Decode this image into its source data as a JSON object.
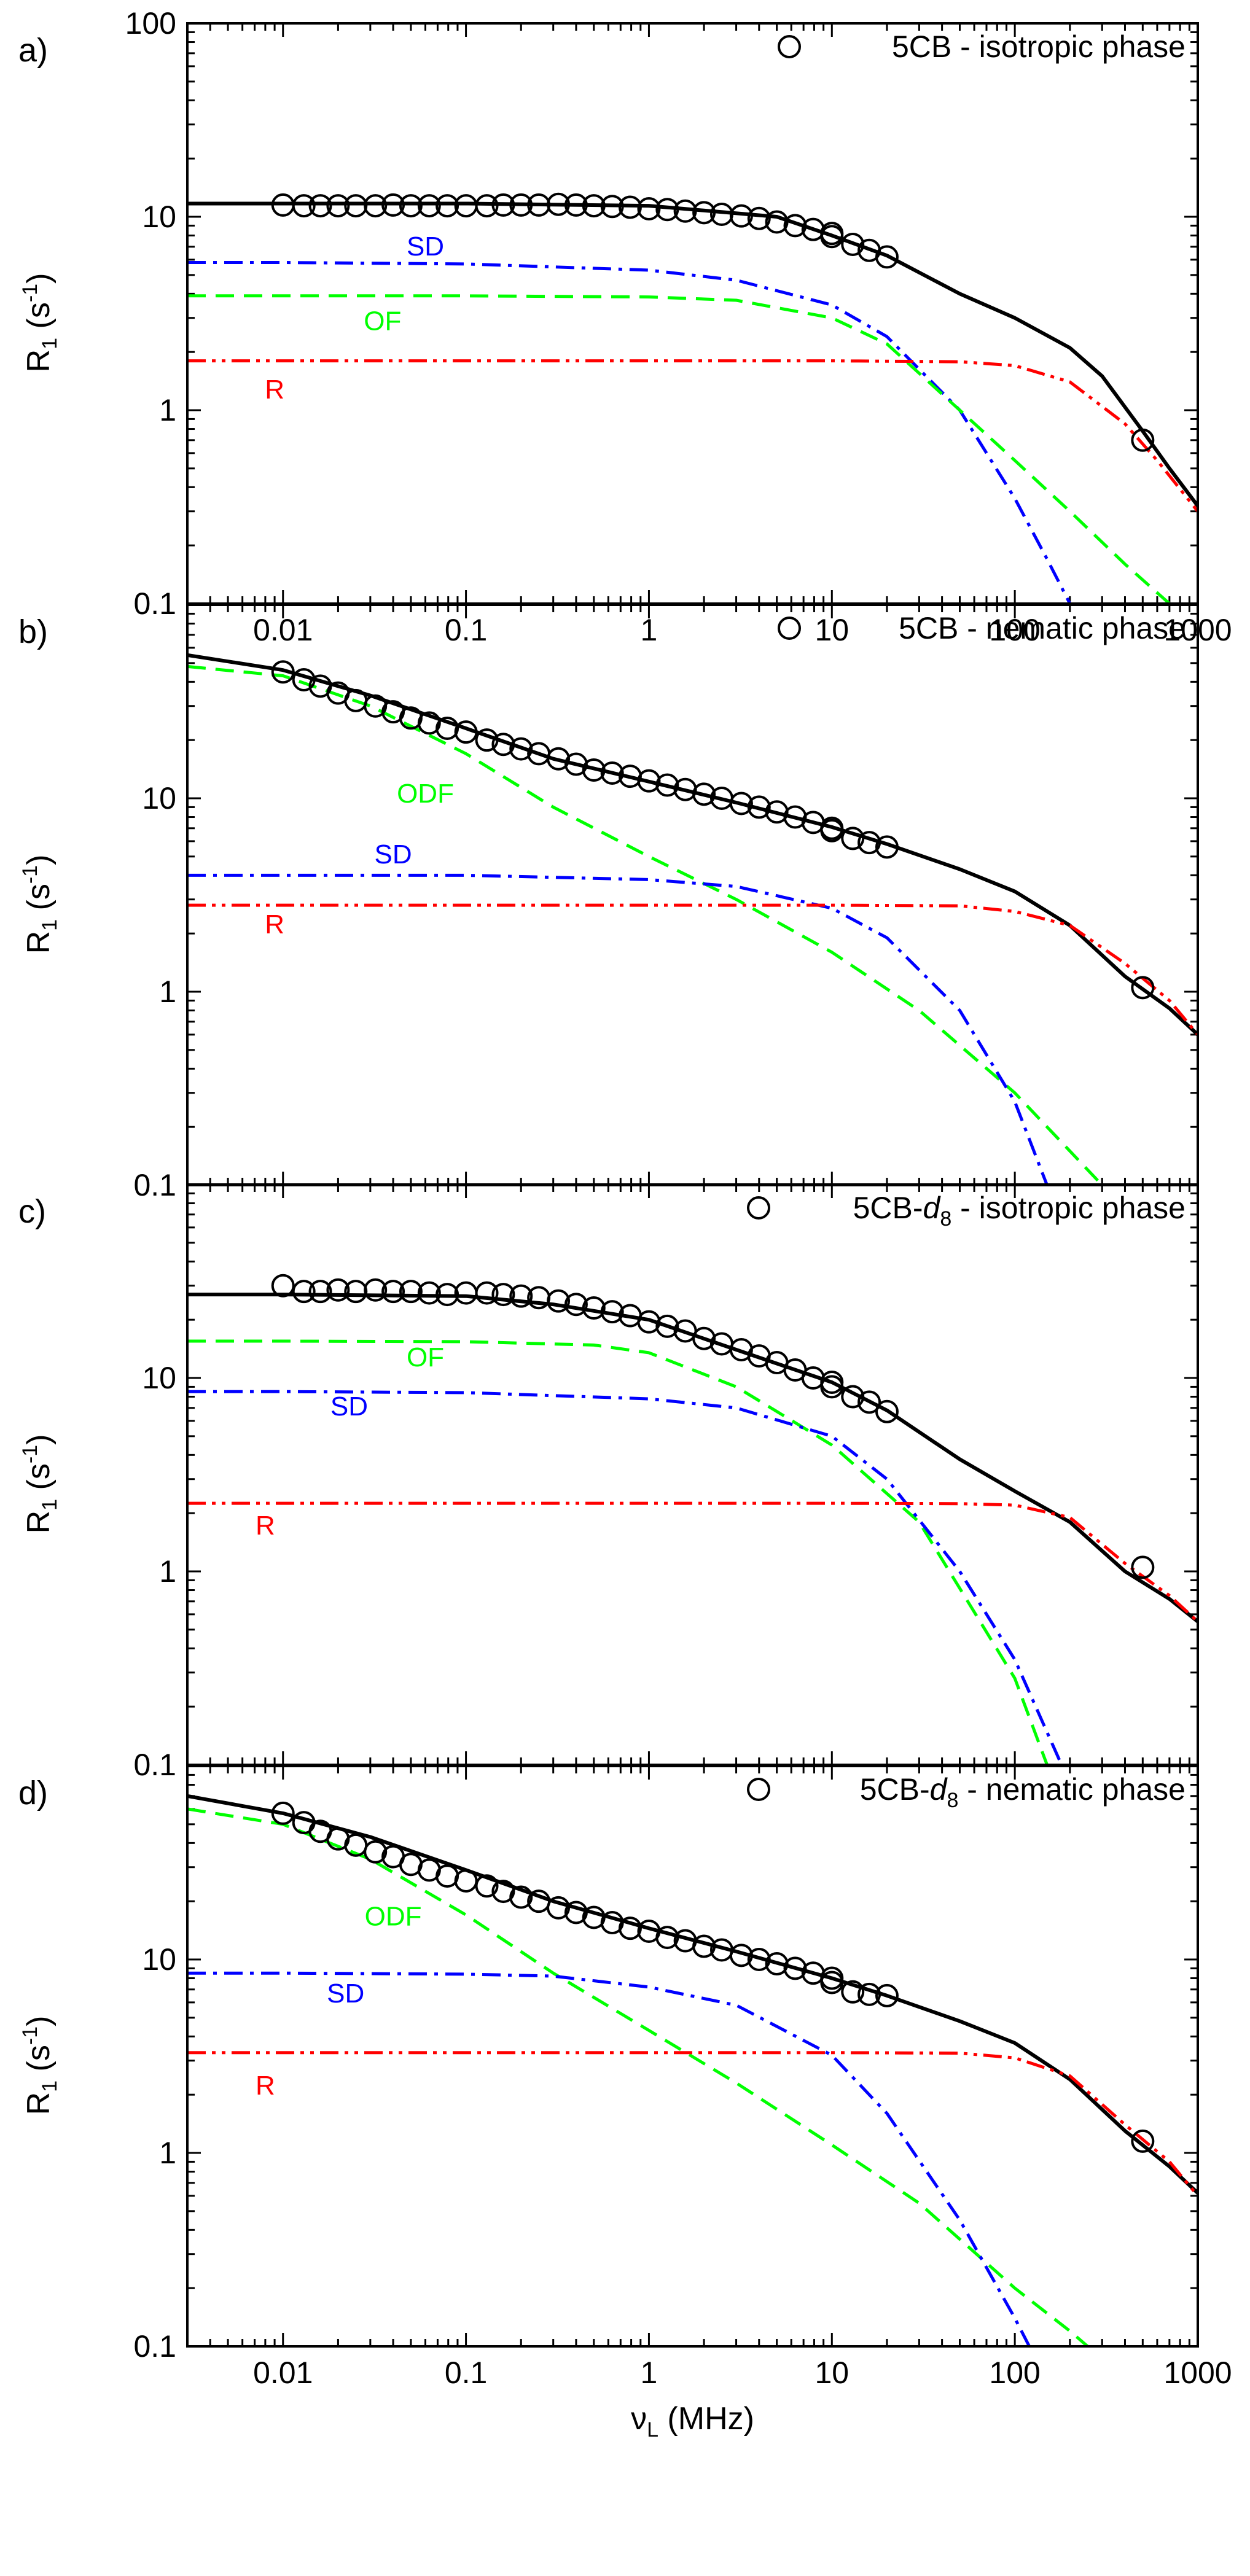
{
  "chart_data": [
    {
      "type": "scatter",
      "panel": "a)",
      "legend": "5CB - isotropic phase",
      "ylabel": "R1 (s-1)",
      "xlabel": "νL (MHz)",
      "xscale": "log",
      "yscale": "log",
      "xlim": [
        0.003,
        1000
      ],
      "ylim": [
        0.1,
        100
      ],
      "x_ticks": [
        "0.01",
        "0.1",
        "1",
        "10",
        "100",
        "1000"
      ],
      "y_ticks": [
        "0.1",
        "1",
        "10",
        "100"
      ],
      "experimental": {
        "x": [
          0.01,
          0.013,
          0.016,
          0.02,
          0.025,
          0.032,
          0.04,
          0.05,
          0.063,
          0.079,
          0.1,
          0.13,
          0.16,
          0.2,
          0.25,
          0.32,
          0.4,
          0.5,
          0.63,
          0.79,
          1.0,
          1.26,
          1.58,
          2.0,
          2.5,
          3.2,
          4.0,
          5.0,
          6.3,
          7.9,
          10,
          10,
          13,
          16,
          20,
          500
        ],
        "y": [
          11.5,
          11.4,
          11.4,
          11.4,
          11.4,
          11.4,
          11.5,
          11.4,
          11.4,
          11.4,
          11.4,
          11.4,
          11.5,
          11.5,
          11.5,
          11.6,
          11.5,
          11.4,
          11.3,
          11.2,
          11.0,
          10.9,
          10.7,
          10.5,
          10.3,
          10.1,
          9.8,
          9.4,
          9.0,
          8.6,
          8.2,
          7.9,
          7.2,
          6.7,
          6.2,
          0.7
        ]
      },
      "series": [
        {
          "name": "total",
          "color": "#000000",
          "style": "solid",
          "x": [
            0.003,
            0.01,
            0.1,
            1,
            5,
            10,
            20,
            50,
            100,
            200,
            300,
            500,
            700,
            1000
          ],
          "y": [
            11.7,
            11.7,
            11.7,
            11.4,
            10.0,
            8.0,
            6.3,
            4.0,
            3.0,
            2.1,
            1.5,
            0.78,
            0.5,
            0.32
          ]
        },
        {
          "name": "SD",
          "color": "#0000ff",
          "style": "dashdot",
          "x": [
            0.003,
            0.01,
            0.1,
            1,
            3,
            10,
            20,
            50,
            100,
            150,
            200
          ],
          "y": [
            5.8,
            5.8,
            5.7,
            5.3,
            4.7,
            3.5,
            2.4,
            1.0,
            0.35,
            0.17,
            0.1
          ]
        },
        {
          "name": "OF",
          "color": "#00ff00",
          "style": "dashed",
          "x": [
            0.003,
            0.01,
            0.1,
            1,
            3,
            10,
            20,
            50,
            100,
            200,
            400,
            700
          ],
          "y": [
            3.9,
            3.9,
            3.9,
            3.85,
            3.7,
            3.0,
            2.2,
            1.0,
            0.55,
            0.3,
            0.16,
            0.1
          ]
        },
        {
          "name": "R",
          "color": "#ff0000",
          "style": "dashdotdot",
          "x": [
            0.003,
            0.01,
            1,
            10,
            50,
            100,
            200,
            400,
            600,
            1000
          ],
          "y": [
            1.8,
            1.8,
            1.8,
            1.8,
            1.78,
            1.7,
            1.4,
            0.85,
            0.55,
            0.3
          ]
        }
      ],
      "labels": [
        {
          "text": "SD",
          "x": 0.06,
          "y": 6.3,
          "color": "#0000ff"
        },
        {
          "text": "OF",
          "x": 0.035,
          "y": 2.6,
          "color": "#00ff00"
        },
        {
          "text": "R",
          "x": 0.009,
          "y": 1.15,
          "color": "#ff0000"
        }
      ]
    },
    {
      "type": "scatter",
      "panel": "b)",
      "legend": "5CB - nematic phase",
      "ylabel": "R1 (s-1)",
      "xscale": "log",
      "yscale": "log",
      "xlim": [
        0.003,
        1000
      ],
      "ylim": [
        0.1,
        100
      ],
      "y_ticks": [
        "0.1",
        "1",
        "10"
      ],
      "experimental": {
        "x": [
          0.01,
          0.013,
          0.016,
          0.02,
          0.025,
          0.032,
          0.04,
          0.05,
          0.063,
          0.079,
          0.1,
          0.13,
          0.16,
          0.2,
          0.25,
          0.32,
          0.4,
          0.5,
          0.63,
          0.79,
          1.0,
          1.26,
          1.58,
          2.0,
          2.5,
          3.2,
          4.0,
          5.0,
          6.3,
          7.9,
          10,
          10,
          13,
          16,
          20,
          500
        ],
        "y": [
          45,
          41,
          38,
          35,
          32,
          30,
          28,
          26,
          24.5,
          23,
          22,
          20,
          19,
          18,
          17,
          16,
          15,
          14,
          13.5,
          13,
          12.3,
          11.7,
          11.1,
          10.5,
          10,
          9.4,
          9.0,
          8.5,
          8.0,
          7.5,
          7.0,
          6.8,
          6.2,
          5.9,
          5.6,
          1.05
        ]
      },
      "series": [
        {
          "name": "total",
          "color": "#000000",
          "style": "solid",
          "x": [
            0.003,
            0.01,
            0.03,
            0.1,
            0.3,
            1,
            3,
            10,
            20,
            50,
            100,
            200,
            400,
            700,
            1000
          ],
          "y": [
            55,
            46,
            34,
            23,
            16,
            12.2,
            9.5,
            7.1,
            5.8,
            4.3,
            3.3,
            2.2,
            1.2,
            0.82,
            0.6
          ]
        },
        {
          "name": "ODF",
          "color": "#00ff00",
          "style": "dashed",
          "x": [
            0.003,
            0.01,
            0.03,
            0.1,
            0.3,
            1,
            3,
            10,
            30,
            100,
            200,
            300
          ],
          "y": [
            48,
            43,
            30,
            17,
            9,
            5,
            3,
            1.6,
            0.8,
            0.3,
            0.15,
            0.1
          ]
        },
        {
          "name": "SD",
          "color": "#0000ff",
          "style": "dashdot",
          "x": [
            0.003,
            0.01,
            0.1,
            1,
            3,
            10,
            20,
            50,
            100,
            150
          ],
          "y": [
            4.0,
            4.0,
            4.0,
            3.8,
            3.5,
            2.7,
            1.9,
            0.8,
            0.27,
            0.1
          ]
        },
        {
          "name": "R",
          "color": "#ff0000",
          "style": "dashdotdot",
          "x": [
            0.003,
            0.01,
            1,
            10,
            50,
            100,
            200,
            400,
            700,
            1000
          ],
          "y": [
            2.8,
            2.8,
            2.8,
            2.8,
            2.78,
            2.6,
            2.2,
            1.4,
            0.9,
            0.6
          ]
        }
      ],
      "labels": [
        {
          "text": "ODF",
          "x": 0.06,
          "y": 9.5,
          "color": "#00ff00"
        },
        {
          "text": "SD",
          "x": 0.04,
          "y": 4.6,
          "color": "#0000ff"
        },
        {
          "text": "R",
          "x": 0.009,
          "y": 2.0,
          "color": "#ff0000"
        }
      ]
    },
    {
      "type": "scatter",
      "panel": "c)",
      "legend_prefix": "5CB-",
      "legend_italic": "d",
      "legend_sub": "8",
      "legend_suffix": " - isotropic phase",
      "ylabel": "R1 (s-1)",
      "xscale": "log",
      "yscale": "log",
      "xlim": [
        0.003,
        1000
      ],
      "ylim": [
        0.1,
        100
      ],
      "y_ticks": [
        "0.1",
        "1",
        "10"
      ],
      "experimental": {
        "x": [
          0.01,
          0.013,
          0.016,
          0.02,
          0.025,
          0.032,
          0.04,
          0.05,
          0.063,
          0.079,
          0.1,
          0.13,
          0.16,
          0.2,
          0.25,
          0.32,
          0.4,
          0.5,
          0.63,
          0.79,
          1.0,
          1.26,
          1.58,
          2.0,
          2.5,
          3.2,
          4.0,
          5.0,
          6.3,
          7.9,
          10,
          10,
          13,
          16,
          20,
          500
        ],
        "y": [
          30,
          28,
          28,
          28.5,
          28,
          28.5,
          28,
          28,
          27.5,
          27,
          27.5,
          27.5,
          27,
          26.5,
          26,
          25,
          24,
          23,
          22,
          21,
          19.5,
          18.5,
          17.5,
          16,
          15,
          14,
          13,
          12,
          11,
          10,
          9.5,
          9.0,
          8,
          7.5,
          6.7,
          1.05
        ]
      },
      "series": [
        {
          "name": "total",
          "color": "#000000",
          "style": "solid",
          "x": [
            0.003,
            0.01,
            0.1,
            0.3,
            1,
            3,
            10,
            20,
            50,
            100,
            200,
            400,
            700,
            1000
          ],
          "y": [
            27,
            27,
            26.5,
            24,
            20,
            14,
            9.5,
            6.8,
            3.8,
            2.6,
            1.8,
            1.0,
            0.72,
            0.55
          ]
        },
        {
          "name": "OF",
          "color": "#00ff00",
          "style": "dashed",
          "x": [
            0.003,
            0.01,
            0.1,
            0.5,
            1,
            3,
            10,
            30,
            100,
            150
          ],
          "y": [
            15.5,
            15.5,
            15.4,
            14.8,
            13.5,
            9,
            4.5,
            1.8,
            0.28,
            0.1
          ]
        },
        {
          "name": "SD",
          "color": "#0000ff",
          "style": "dashdot",
          "x": [
            0.003,
            0.01,
            0.1,
            1,
            3,
            10,
            20,
            50,
            100,
            180
          ],
          "y": [
            8.5,
            8.5,
            8.4,
            7.8,
            7.0,
            5.0,
            3.0,
            1.0,
            0.35,
            0.1
          ]
        },
        {
          "name": "R",
          "color": "#ff0000",
          "style": "dashdotdot",
          "x": [
            0.003,
            0.01,
            1,
            10,
            50,
            100,
            200,
            400,
            700,
            1000
          ],
          "y": [
            2.25,
            2.25,
            2.25,
            2.25,
            2.24,
            2.2,
            1.9,
            1.1,
            0.75,
            0.55
          ]
        }
      ],
      "labels": [
        {
          "text": "OF",
          "x": 0.06,
          "y": 11.5,
          "color": "#00ff00"
        },
        {
          "text": "SD",
          "x": 0.023,
          "y": 6.4,
          "color": "#0000ff"
        },
        {
          "text": "R",
          "x": 0.008,
          "y": 1.55,
          "color": "#ff0000"
        }
      ]
    },
    {
      "type": "scatter",
      "panel": "d)",
      "legend_prefix": "5CB-",
      "legend_italic": "d",
      "legend_sub": "8",
      "legend_suffix": " - nematic phase",
      "ylabel": "R1 (s-1)",
      "xlabel_main": "ν",
      "xlabel_sub": "L",
      "xlabel_rest": " (MHz)",
      "xscale": "log",
      "yscale": "log",
      "xlim": [
        0.003,
        1000
      ],
      "ylim": [
        0.1,
        100
      ],
      "x_ticks": [
        "0.01",
        "0.1",
        "1",
        "10",
        "100",
        "1000"
      ],
      "y_ticks": [
        "0.1",
        "1",
        "10"
      ],
      "experimental": {
        "x": [
          0.01,
          0.013,
          0.016,
          0.02,
          0.025,
          0.032,
          0.04,
          0.05,
          0.063,
          0.079,
          0.1,
          0.13,
          0.16,
          0.2,
          0.25,
          0.32,
          0.4,
          0.5,
          0.63,
          0.79,
          1.0,
          1.26,
          1.58,
          2.0,
          2.5,
          3.2,
          4.0,
          5.0,
          6.3,
          7.9,
          10,
          10,
          13,
          16,
          20,
          500
        ],
        "y": [
          57,
          51,
          46,
          42,
          39,
          36,
          34,
          31,
          29,
          27,
          25.5,
          24,
          22.5,
          21,
          20,
          18.5,
          17.5,
          16.5,
          15.5,
          14.5,
          14,
          13,
          12.5,
          11.7,
          11.2,
          10.5,
          10,
          9.5,
          9.0,
          8.5,
          8.0,
          7.6,
          6.8,
          6.6,
          6.5,
          1.15
        ]
      },
      "series": [
        {
          "name": "total",
          "color": "#000000",
          "style": "solid",
          "x": [
            0.003,
            0.01,
            0.03,
            0.1,
            0.3,
            1,
            3,
            10,
            20,
            50,
            100,
            200,
            400,
            700,
            1000
          ],
          "y": [
            70,
            57,
            43,
            29,
            20,
            14.5,
            11,
            8.0,
            6.5,
            4.8,
            3.7,
            2.4,
            1.3,
            0.85,
            0.62
          ]
        },
        {
          "name": "ODF",
          "color": "#00ff00",
          "style": "dashed",
          "x": [
            0.003,
            0.01,
            0.03,
            0.1,
            0.3,
            1,
            3,
            10,
            30,
            100,
            200,
            250
          ],
          "y": [
            60,
            50,
            33,
            17,
            8.5,
            4.3,
            2.3,
            1.1,
            0.55,
            0.2,
            0.12,
            0.1
          ]
        },
        {
          "name": "SD",
          "color": "#0000ff",
          "style": "dashdot",
          "x": [
            0.003,
            0.01,
            0.1,
            0.3,
            1,
            3,
            10,
            20,
            50,
            100,
            120
          ],
          "y": [
            8.5,
            8.5,
            8.4,
            8.2,
            7.2,
            5.8,
            3.2,
            1.6,
            0.45,
            0.14,
            0.1
          ]
        },
        {
          "name": "R",
          "color": "#ff0000",
          "style": "dashdotdot",
          "x": [
            0.003,
            0.01,
            1,
            10,
            50,
            100,
            200,
            400,
            700,
            1000
          ],
          "y": [
            3.3,
            3.3,
            3.3,
            3.3,
            3.28,
            3.1,
            2.5,
            1.4,
            0.9,
            0.6
          ]
        }
      ],
      "labels": [
        {
          "text": "ODF",
          "x": 0.04,
          "y": 15,
          "color": "#00ff00"
        },
        {
          "text": "SD",
          "x": 0.022,
          "y": 6.0,
          "color": "#0000ff"
        },
        {
          "text": "R",
          "x": 0.008,
          "y": 2.0,
          "color": "#ff0000"
        }
      ]
    }
  ]
}
